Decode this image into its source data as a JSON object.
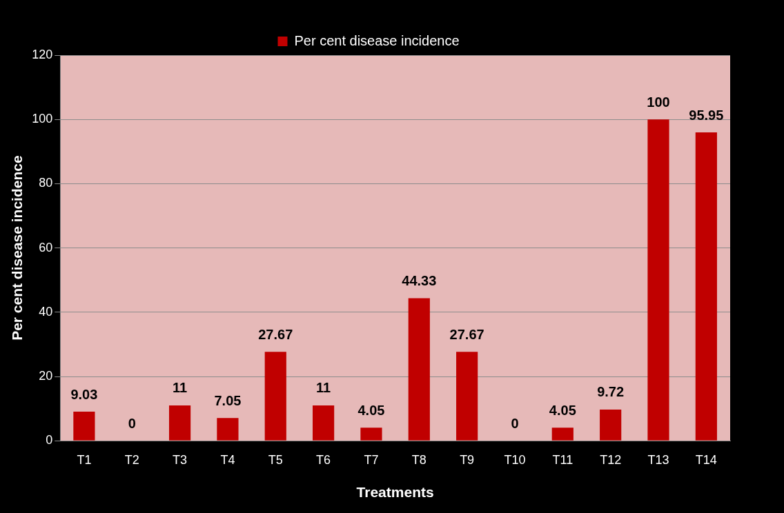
{
  "chart_data": {
    "type": "bar",
    "xlabel": "Treatments",
    "ylabel": "Per cent disease incidence",
    "categories": [
      "T1",
      "T2",
      "T3",
      "T4",
      "T5",
      "T6",
      "T7",
      "T8",
      "T9",
      "T10",
      "T11",
      "T12",
      "T13",
      "T14"
    ],
    "series": [
      {
        "name": "Per cent disease incidence",
        "color": "#c00000",
        "values": [
          9.03,
          0,
          11,
          7.05,
          27.67,
          11,
          4.05,
          44.33,
          27.67,
          0,
          4.05,
          9.72,
          100,
          95.95
        ]
      }
    ],
    "ylim": [
      0,
      120
    ],
    "yticks": [
      0,
      20,
      40,
      60,
      80,
      100,
      120
    ],
    "grid": "y",
    "legend": "top",
    "data_labels": true
  }
}
